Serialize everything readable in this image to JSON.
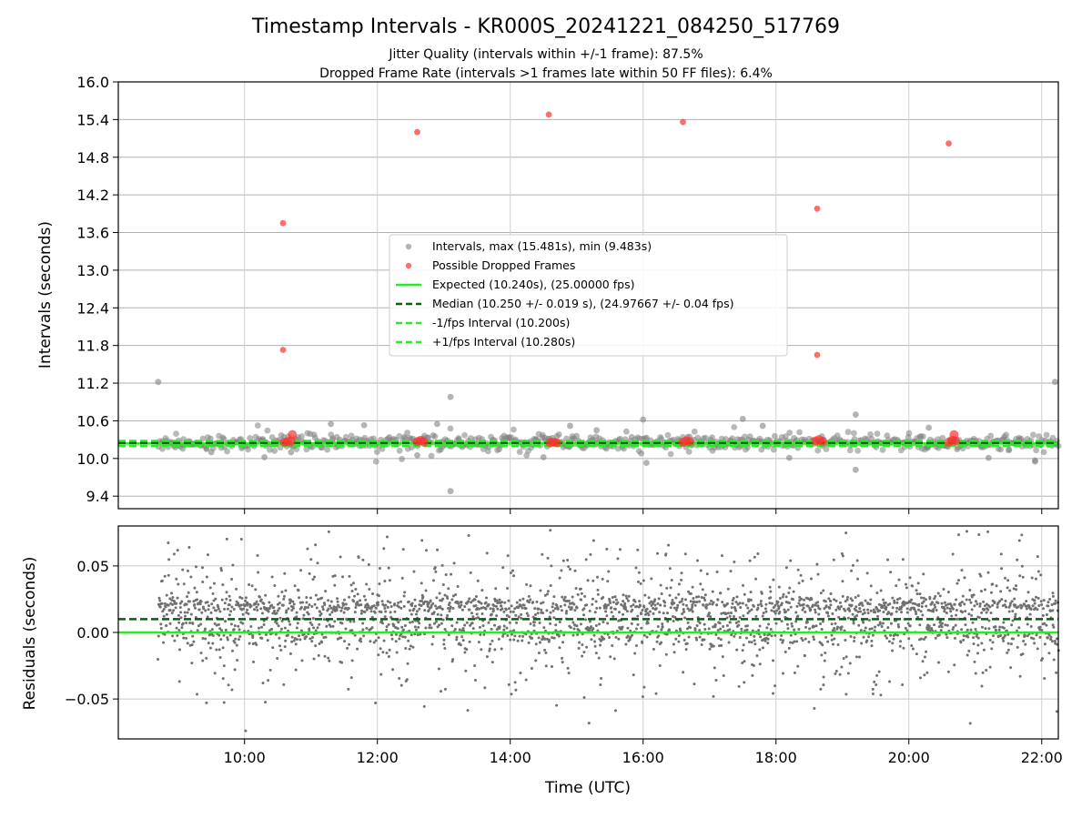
{
  "chart_data": [
    {
      "type": "scatter",
      "title": "Timestamp Intervals - KR000S_20241221_084250_517769",
      "subtitle_lines": [
        "Jitter Quality (intervals within +/-1 frame): 87.5%",
        "Dropped Frame Rate (intervals >1 frames late within 50 FF files): 6.4%"
      ],
      "ylabel": "Intervals (seconds)",
      "xlabel": "",
      "xlim": [
        8.1,
        22.25
      ],
      "ylim": [
        9.2,
        16.0
      ],
      "x_tick_values": [
        10,
        12,
        14,
        16,
        18,
        20,
        22
      ],
      "y_ticks": [
        {
          "value": 9.4,
          "label": "9.4"
        },
        {
          "value": 10.0,
          "label": "10.0"
        },
        {
          "value": 10.6,
          "label": "10.6"
        },
        {
          "value": 11.2,
          "label": "11.2"
        },
        {
          "value": 11.8,
          "label": "11.8"
        },
        {
          "value": 12.4,
          "label": "12.4"
        },
        {
          "value": 13.0,
          "label": "13.0"
        },
        {
          "value": 13.6,
          "label": "13.6"
        },
        {
          "value": 14.2,
          "label": "14.2"
        },
        {
          "value": 14.8,
          "label": "14.8"
        },
        {
          "value": 15.4,
          "label": "15.4"
        },
        {
          "value": 16.0,
          "label": "16.0"
        }
      ],
      "grid": true,
      "legend_position": "center",
      "series": [
        {
          "name": "Intervals, max (15.481s), min (9.483s)",
          "kind": "scatter",
          "color": "#808080",
          "outliers": [
            [
              8.7,
              11.22
            ],
            [
              13.1,
              10.98
            ],
            [
              13.1,
              9.48
            ],
            [
              16.0,
              10.62
            ],
            [
              16.05,
              9.93
            ],
            [
              17.5,
              10.63
            ],
            [
              19.2,
              10.7
            ],
            [
              19.2,
              9.82
            ],
            [
              22.2,
              11.22
            ],
            [
              11.3,
              10.55
            ],
            [
              11.8,
              10.53
            ],
            [
              12.9,
              10.55
            ],
            [
              14.9,
              10.52
            ],
            [
              20.3,
              10.49
            ],
            [
              9.5,
              10.1
            ],
            [
              10.3,
              10.02
            ],
            [
              12.6,
              10.05
            ],
            [
              14.5,
              10.02
            ],
            [
              18.2,
              10.01
            ],
            [
              21.2,
              10.01
            ],
            [
              21.9,
              9.97
            ],
            [
              17.8,
              10.52
            ],
            [
              10.7,
              10.1
            ],
            [
              15.3,
              10.45
            ]
          ]
        },
        {
          "name": "Possible Dropped Frames",
          "kind": "scatter",
          "color": "#ff3030",
          "points": [
            [
              10.58,
              13.75
            ],
            [
              10.58,
              11.73
            ],
            [
              12.6,
              15.2
            ],
            [
              14.58,
              15.48
            ],
            [
              16.6,
              15.36
            ],
            [
              18.62,
              13.98
            ],
            [
              18.62,
              11.65
            ],
            [
              20.6,
              15.02
            ],
            [
              10.6,
              10.26
            ],
            [
              10.65,
              10.27
            ],
            [
              10.7,
              10.28
            ],
            [
              10.72,
              10.38
            ],
            [
              12.6,
              10.27
            ],
            [
              12.65,
              10.29
            ],
            [
              12.7,
              10.26
            ],
            [
              14.6,
              10.25
            ],
            [
              14.65,
              10.26
            ],
            [
              14.7,
              10.25
            ],
            [
              16.6,
              10.26
            ],
            [
              16.65,
              10.28
            ],
            [
              16.7,
              10.27
            ],
            [
              18.6,
              10.28
            ],
            [
              18.65,
              10.3
            ],
            [
              18.7,
              10.27
            ],
            [
              20.6,
              10.26
            ],
            [
              20.65,
              10.29
            ],
            [
              20.7,
              10.28
            ],
            [
              20.68,
              10.38
            ]
          ]
        },
        {
          "name": "Expected (10.240s), (25.00000 fps)",
          "kind": "hline",
          "y": 10.24,
          "color": "#22ee22",
          "dash": "solid"
        },
        {
          "name": "Median (10.250 +/- 0.019 s), (24.97667 +/- 0.04 fps)",
          "kind": "hline",
          "y": 10.25,
          "color": "#006400",
          "dash": "dashed"
        },
        {
          "name": "-1/fps Interval (10.200s)",
          "kind": "hline",
          "y": 10.2,
          "color": "#22ee22",
          "dash": "dashed"
        },
        {
          "name": "+1/fps Interval (10.280s)",
          "kind": "hline",
          "y": 10.28,
          "color": "#22ee22",
          "dash": "dashed"
        }
      ]
    },
    {
      "type": "scatter",
      "xlabel": "Time (UTC)",
      "ylabel": "Residuals (seconds)",
      "xlim": [
        8.1,
        22.25
      ],
      "ylim": [
        -0.08,
        0.08
      ],
      "x_ticks": [
        {
          "value": 10,
          "label": "10:00"
        },
        {
          "value": 12,
          "label": "12:00"
        },
        {
          "value": 14,
          "label": "14:00"
        },
        {
          "value": 16,
          "label": "16:00"
        },
        {
          "value": 18,
          "label": "18:00"
        },
        {
          "value": 20,
          "label": "20:00"
        },
        {
          "value": 22,
          "label": "22:00"
        }
      ],
      "y_ticks": [
        {
          "value": 0.05,
          "label": "0.05"
        },
        {
          "value": 0.0,
          "label": "0.00"
        },
        {
          "value": -0.05,
          "label": "−0.05"
        }
      ],
      "grid": true,
      "series": [
        {
          "kind": "scatter",
          "color": "#707070",
          "x_range": [
            8.7,
            22.25
          ],
          "y_range": [
            -0.08,
            0.08
          ]
        },
        {
          "kind": "hline",
          "y": 0.0,
          "color": "#22ee22",
          "dash": "solid"
        },
        {
          "kind": "hline",
          "y": 0.01,
          "color": "#006400",
          "dash": "dashed"
        }
      ]
    }
  ]
}
